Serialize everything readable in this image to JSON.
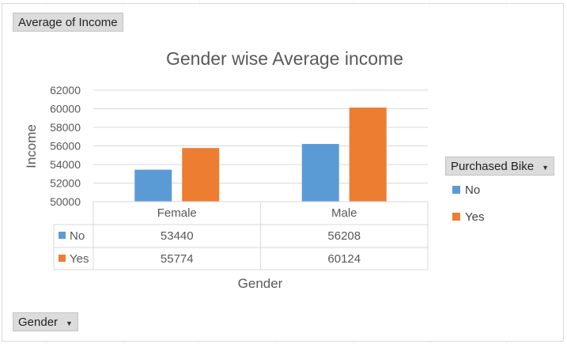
{
  "fields": {
    "values_label": "Average of Income",
    "axis_label": "Gender",
    "legend_label": "Purchased Bike"
  },
  "colors": {
    "no": "#5b9bd5",
    "yes": "#ed7d31",
    "grid": "#d9d9d9",
    "text": "#595959"
  },
  "chart_data": {
    "type": "bar",
    "title": "Gender wise Average income",
    "xlabel": "Gender",
    "ylabel": "Income",
    "ylim": [
      50000,
      62000
    ],
    "ytick_step": 2000,
    "yticks": [
      "50000",
      "52000",
      "54000",
      "56000",
      "58000",
      "60000",
      "62000"
    ],
    "categories": [
      "Female",
      "Male"
    ],
    "grid": true,
    "legend_position": "right",
    "series": [
      {
        "name": "No",
        "values": [
          53440,
          56208
        ],
        "labels": [
          "53440",
          "56208"
        ],
        "color": "#5b9bd5"
      },
      {
        "name": "Yes",
        "values": [
          55774,
          60124
        ],
        "labels": [
          "55774",
          "60124"
        ],
        "color": "#ed7d31"
      }
    ]
  }
}
